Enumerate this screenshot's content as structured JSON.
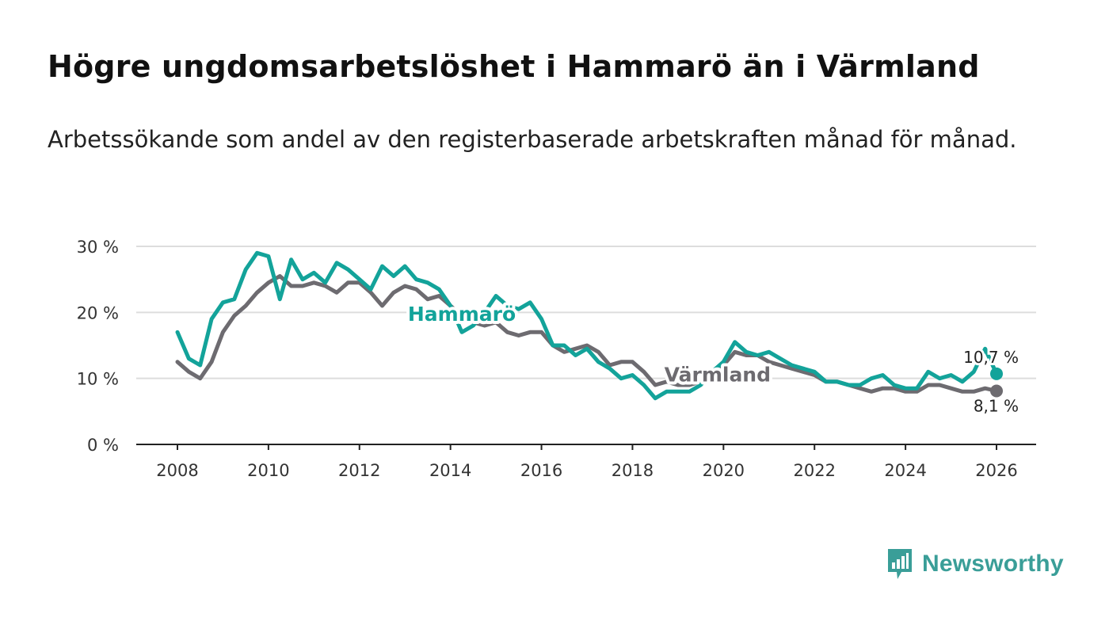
{
  "title": "Högre ungdomsarbetslöshet i Hammarö än i Värmland",
  "subtitle": "Arbetssökande som andel av den registerbaserade arbetskraften månad för månad.",
  "brand": "Newsworthy",
  "colors": {
    "hammaro": "#13a39a",
    "varmland": "#6d6b70",
    "grid": "#dddddd",
    "axis": "#222222",
    "brand": "#3a9e98"
  },
  "chart_data": {
    "type": "line",
    "title": "Högre ungdomsarbetslöshet i Hammarö än i Värmland",
    "xlabel": "",
    "ylabel": "",
    "xlim": [
      2007.9,
      2026.9
    ],
    "ylim": [
      0,
      30
    ],
    "y_ticks": [
      0,
      10,
      20,
      30
    ],
    "y_tick_labels": [
      "0 %",
      "10 %",
      "20 %",
      "30 %"
    ],
    "x_ticks": [
      2008,
      2010,
      2012,
      2014,
      2016,
      2018,
      2020,
      2022,
      2024,
      2026
    ],
    "x_tick_labels": [
      "2008",
      "2010",
      "2012",
      "2014",
      "2016",
      "2018",
      "2020",
      "2022",
      "2024",
      "2026"
    ],
    "grid": true,
    "series": [
      {
        "name": "Värmland",
        "label": "Värmland",
        "end_label": "8,1 %",
        "x": [
          2008.0,
          2008.25,
          2008.5,
          2008.75,
          2009.0,
          2009.25,
          2009.5,
          2009.75,
          2010.0,
          2010.25,
          2010.5,
          2010.75,
          2011.0,
          2011.25,
          2011.5,
          2011.75,
          2012.0,
          2012.25,
          2012.5,
          2012.75,
          2013.0,
          2013.25,
          2013.5,
          2013.75,
          2014.0,
          2014.25,
          2014.5,
          2014.75,
          2015.0,
          2015.25,
          2015.5,
          2015.75,
          2016.0,
          2016.25,
          2016.5,
          2016.75,
          2017.0,
          2017.25,
          2017.5,
          2017.75,
          2018.0,
          2018.25,
          2018.5,
          2018.75,
          2019.0,
          2019.25,
          2019.5,
          2019.75,
          2020.0,
          2020.25,
          2020.5,
          2020.75,
          2021.0,
          2021.25,
          2021.5,
          2021.75,
          2022.0,
          2022.25,
          2022.5,
          2022.75,
          2023.0,
          2023.25,
          2023.5,
          2023.75,
          2024.0,
          2024.25,
          2024.5,
          2024.75,
          2025.0,
          2025.25,
          2025.5,
          2025.75,
          2026.0
        ],
        "values": [
          12.5,
          11.0,
          10.0,
          12.5,
          17.0,
          19.5,
          21.0,
          23.0,
          24.5,
          25.5,
          24.0,
          24.0,
          24.5,
          24.0,
          23.0,
          24.5,
          24.5,
          23.0,
          21.0,
          23.0,
          24.0,
          23.5,
          22.0,
          22.5,
          21.0,
          19.5,
          18.5,
          18.0,
          18.5,
          17.0,
          16.5,
          17.0,
          17.0,
          15.0,
          14.0,
          14.5,
          15.0,
          14.0,
          12.0,
          12.5,
          12.5,
          11.0,
          9.0,
          9.5,
          9.0,
          9.0,
          9.5,
          11.0,
          12.0,
          14.0,
          13.5,
          13.5,
          12.5,
          12.0,
          11.5,
          11.0,
          10.5,
          9.5,
          9.5,
          9.0,
          8.5,
          8.0,
          8.5,
          8.5,
          8.0,
          8.0,
          9.0,
          9.0,
          8.5,
          8.0,
          8.0,
          8.5,
          8.1
        ]
      },
      {
        "name": "Hammarö",
        "label": "Hammarö",
        "end_label": "10,7 %",
        "x": [
          2008.0,
          2008.25,
          2008.5,
          2008.75,
          2009.0,
          2009.25,
          2009.5,
          2009.75,
          2010.0,
          2010.25,
          2010.5,
          2010.75,
          2011.0,
          2011.25,
          2011.5,
          2011.75,
          2012.0,
          2012.25,
          2012.5,
          2012.75,
          2013.0,
          2013.25,
          2013.5,
          2013.75,
          2014.0,
          2014.25,
          2014.5,
          2014.75,
          2015.0,
          2015.25,
          2015.5,
          2015.75,
          2016.0,
          2016.25,
          2016.5,
          2016.75,
          2017.0,
          2017.25,
          2017.5,
          2017.75,
          2018.0,
          2018.25,
          2018.5,
          2018.75,
          2019.0,
          2019.25,
          2019.5,
          2019.75,
          2020.0,
          2020.25,
          2020.5,
          2020.75,
          2021.0,
          2021.25,
          2021.5,
          2021.75,
          2022.0,
          2022.25,
          2022.5,
          2022.75,
          2023.0,
          2023.25,
          2023.5,
          2023.75,
          2024.0,
          2024.25,
          2024.5,
          2024.75,
          2025.0,
          2025.25,
          2025.5,
          2025.75,
          2026.0
        ],
        "values": [
          17.0,
          13.0,
          12.0,
          19.0,
          21.5,
          22.0,
          26.5,
          29.0,
          28.5,
          22.0,
          28.0,
          25.0,
          26.0,
          24.5,
          27.5,
          26.5,
          25.0,
          23.5,
          27.0,
          25.5,
          27.0,
          25.0,
          24.5,
          23.5,
          21.0,
          17.0,
          18.0,
          20.0,
          22.5,
          21.0,
          20.5,
          21.5,
          19.0,
          15.0,
          15.0,
          13.5,
          14.5,
          12.5,
          11.5,
          10.0,
          10.5,
          9.0,
          7.0,
          8.0,
          8.0,
          8.0,
          9.0,
          11.0,
          12.5,
          15.5,
          14.0,
          13.5,
          14.0,
          13.0,
          12.0,
          11.5,
          11.0,
          9.5,
          9.5,
          9.0,
          9.0,
          10.0,
          10.5,
          9.0,
          8.5,
          8.5,
          11.0,
          10.0,
          10.5,
          9.5,
          11.0,
          14.5,
          10.7
        ]
      }
    ]
  }
}
